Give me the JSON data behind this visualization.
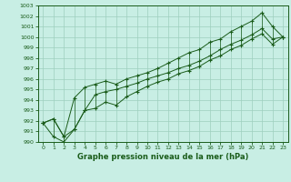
{
  "x": [
    0,
    1,
    2,
    3,
    4,
    5,
    6,
    7,
    8,
    9,
    10,
    11,
    12,
    13,
    14,
    15,
    16,
    17,
    18,
    19,
    20,
    21,
    22,
    23
  ],
  "y_main": [
    991.8,
    992.2,
    990.5,
    991.2,
    993.0,
    994.5,
    994.8,
    995.0,
    995.3,
    995.6,
    996.0,
    996.3,
    996.6,
    997.0,
    997.3,
    997.7,
    998.2,
    998.8,
    999.3,
    999.7,
    1000.2,
    1000.8,
    999.8,
    1000.0
  ],
  "y_upper": [
    991.8,
    992.2,
    990.5,
    994.2,
    995.2,
    995.5,
    995.8,
    995.5,
    996.0,
    996.3,
    996.6,
    997.0,
    997.5,
    998.0,
    998.5,
    998.8,
    999.5,
    999.8,
    1000.5,
    1001.0,
    1001.5,
    1002.3,
    1001.0,
    1000.0
  ],
  "y_lower": [
    991.8,
    990.5,
    990.0,
    991.2,
    993.0,
    993.2,
    993.8,
    993.5,
    994.3,
    994.8,
    995.3,
    995.7,
    996.0,
    996.5,
    996.8,
    997.2,
    997.8,
    998.2,
    998.8,
    999.2,
    999.8,
    1000.3,
    999.3,
    1000.0
  ],
  "title": "Graphe pression niveau de la mer (hPa)",
  "bg_color": "#c8eee4",
  "line_color": "#1a5c1a",
  "grid_color": "#9ecfbe",
  "ylim": [
    990,
    1003
  ],
  "xlim": [
    -0.5,
    23.5
  ],
  "yticks": [
    990,
    991,
    992,
    993,
    994,
    995,
    996,
    997,
    998,
    999,
    1000,
    1001,
    1002,
    1003
  ],
  "xticks": [
    0,
    1,
    2,
    3,
    4,
    5,
    6,
    7,
    8,
    9,
    10,
    11,
    12,
    13,
    14,
    15,
    16,
    17,
    18,
    19,
    20,
    21,
    22,
    23
  ],
  "tick_fontsize": 4.5,
  "xlabel_fontsize": 6.0,
  "marker_size": 3.0,
  "line_width": 0.7
}
